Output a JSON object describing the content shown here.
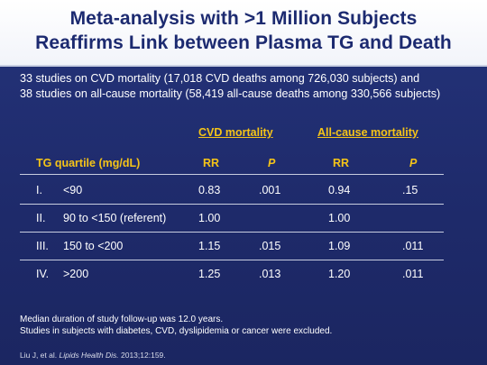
{
  "slide": {
    "title_line1": "Meta-analysis with >1 Million Subjects",
    "title_line2": "Reaffirms Link between Plasma TG and Death",
    "intro_line1": "33 studies on CVD mortality (17,018 CVD deaths among 726,030 subjects) and",
    "intro_line2": "38 studies on all-cause mortality (58,419 all-cause deaths among 330,566 subjects)"
  },
  "table": {
    "group_headers": [
      "CVD mortality",
      "All-cause mortality"
    ],
    "row_header": "TG quartile (mg/dL)",
    "columns": [
      "RR",
      "P",
      "RR",
      "P"
    ],
    "rows": [
      {
        "num": "I.",
        "label": "<90",
        "cvd_rr": "0.83",
        "cvd_p": ".001",
        "all_rr": "0.94",
        "all_p": ".15"
      },
      {
        "num": "II.",
        "label": "90 to <150 (referent)",
        "cvd_rr": "1.00",
        "cvd_p": "",
        "all_rr": "1.00",
        "all_p": ""
      },
      {
        "num": "III.",
        "label": "150 to <200",
        "cvd_rr": "1.15",
        "cvd_p": ".015",
        "all_rr": "1.09",
        "all_p": ".011"
      },
      {
        "num": "IV.",
        "label": ">200",
        "cvd_rr": "1.25",
        "cvd_p": ".013",
        "all_rr": "1.20",
        "all_p": ".011"
      }
    ]
  },
  "notes": {
    "line1": "Median duration of study follow-up was 12.0 years.",
    "line2": "Studies in subjects with diabetes, CVD, dyslipidemia or cancer were excluded."
  },
  "citation": {
    "authors": "Liu J, et al.",
    "journal": "Lipids Health Dis.",
    "ref": "2013;12:159."
  },
  "colors": {
    "background": "#1f2c6b",
    "title_text": "#1c2a70",
    "accent": "#f5c418"
  }
}
